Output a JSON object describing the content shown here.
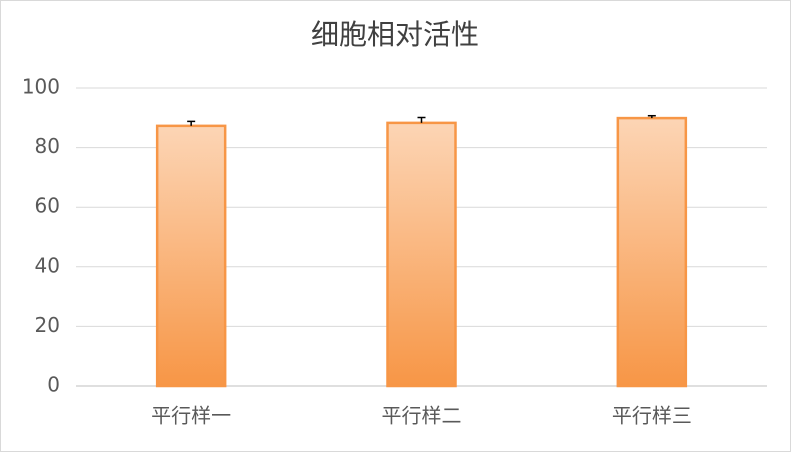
{
  "chart_data": {
    "type": "bar",
    "title": "细胞相对活性",
    "categories": [
      "平行样一",
      "平行样二",
      "平行样三"
    ],
    "values": [
      87.3,
      88.3,
      89.9
    ],
    "errors": [
      1.5,
      1.8,
      0.8
    ],
    "color": "#f79646",
    "error_color": "#000000",
    "ylim": [
      0,
      100
    ],
    "yticks": [
      0,
      20,
      40,
      60,
      80,
      100
    ],
    "grid": true
  }
}
